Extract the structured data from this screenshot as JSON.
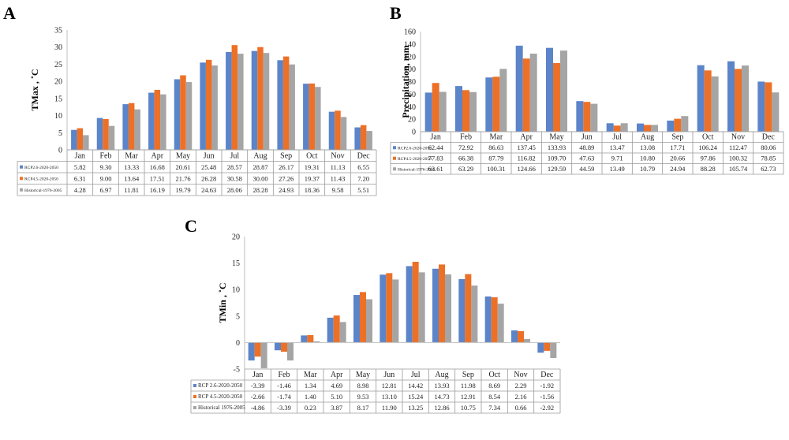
{
  "chart_data": [
    {
      "panel": "A",
      "type": "bar",
      "ylabel": "TMax , ˚C",
      "ylim": [
        0,
        35
      ],
      "yticks": [
        0,
        5,
        10,
        15,
        20,
        25,
        30,
        35
      ],
      "categories": [
        "Jan",
        "Feb",
        "Mar",
        "Apr",
        "May",
        "Jun",
        "Jul",
        "Aug",
        "Sep",
        "Oct",
        "Nov",
        "Dec"
      ],
      "series": [
        {
          "name": "RCP2.6-2020-2050",
          "color": "#5B84C9",
          "values": [
            5.82,
            9.3,
            13.33,
            16.68,
            20.61,
            25.48,
            28.57,
            28.87,
            26.17,
            19.31,
            11.13,
            6.55
          ],
          "labels": [
            "5.82",
            "9.30",
            "13.33",
            "16.68",
            "20.61",
            "25.48",
            "28.57",
            "28.87",
            "26.17",
            "19.31",
            "11.13",
            "6.55"
          ]
        },
        {
          "name": "RCP4.5-2020-2050",
          "color": "#ED7027",
          "values": [
            6.31,
            9.0,
            13.64,
            17.51,
            21.76,
            26.28,
            30.58,
            30.0,
            27.26,
            19.37,
            11.43,
            7.2
          ],
          "labels": [
            "6.31",
            "9.00",
            "13.64",
            "17.51",
            "21.76",
            "26.28",
            "30.58",
            "30.00",
            "27.26",
            "19.37",
            "11.43",
            "7.20"
          ]
        },
        {
          "name": "Historical-1976-2005",
          "color": "#A5A5A5",
          "values": [
            4.28,
            6.97,
            11.81,
            16.19,
            19.79,
            24.63,
            28.06,
            28.28,
            24.93,
            18.36,
            9.58,
            5.51
          ],
          "labels": [
            "4.28",
            "6.97",
            "11.81",
            "16.19",
            "19.79",
            "24.63",
            "28.06",
            "28.28",
            "24.93",
            "18.36",
            "9.58",
            "5.51"
          ]
        }
      ]
    },
    {
      "panel": "B",
      "type": "bar",
      "ylabel": "Precipitation, mm",
      "ylim": [
        0,
        160
      ],
      "yticks": [
        0,
        20,
        40,
        60,
        80,
        100,
        120,
        140,
        160
      ],
      "categories": [
        "Jan",
        "Feb",
        "Mar",
        "Apr",
        "May",
        "Jun",
        "Jul",
        "Aug",
        "Sep",
        "Oct",
        "Nov",
        "Dec"
      ],
      "series": [
        {
          "name": "RCP2.6-2020-2050",
          "color": "#5B84C9",
          "values": [
            62.44,
            72.92,
            86.63,
            137.45,
            133.93,
            48.89,
            13.47,
            13.08,
            17.71,
            106.24,
            112.47,
            80.06
          ],
          "labels": [
            "62.44",
            "72.92",
            "86.63",
            "137.45",
            "133.93",
            "48.89",
            "13.47",
            "13.08",
            "17.71",
            "106.24",
            "112.47",
            "80.06"
          ]
        },
        {
          "name": "RCP4.5-2020-2050",
          "color": "#ED7027",
          "values": [
            77.83,
            66.38,
            87.79,
            116.82,
            109.7,
            47.63,
            9.71,
            10.8,
            20.66,
            97.86,
            100.32,
            78.85
          ],
          "labels": [
            "77.83",
            "66.38",
            "87.79",
            "116.82",
            "109.70",
            "47.63",
            "9.71",
            "10.80",
            "20.66",
            "97.86",
            "100.32",
            "78.85"
          ]
        },
        {
          "name": "Historical-1976-2005",
          "color": "#A5A5A5",
          "values": [
            63.61,
            63.29,
            100.31,
            124.66,
            129.59,
            44.59,
            13.49,
            10.79,
            24.94,
            88.28,
            105.74,
            62.73
          ],
          "labels": [
            "63.61",
            "63.29",
            "100.31",
            "124.66",
            "129.59",
            "44.59",
            "13.49",
            "10.79",
            "24.94",
            "88.28",
            "105.74",
            "62.73"
          ]
        }
      ]
    },
    {
      "panel": "C",
      "type": "bar",
      "ylabel": "TMin , ˚C",
      "ylim": [
        -5,
        20
      ],
      "yticks": [
        -5,
        0,
        5,
        10,
        15,
        20
      ],
      "categories": [
        "Jan",
        "Feb",
        "Mar",
        "Apr",
        "May",
        "Jun",
        "Jul",
        "Aug",
        "Sep",
        "Oct",
        "Nov",
        "Dec"
      ],
      "series": [
        {
          "name": "RCP 2.6-2020-2050",
          "color": "#5B84C9",
          "values": [
            -3.39,
            -1.46,
            1.34,
            4.69,
            8.98,
            12.81,
            14.42,
            13.93,
            11.98,
            8.69,
            2.29,
            -1.92
          ],
          "labels": [
            "-3.39",
            "-1.46",
            "1.34",
            "4.69",
            "8.98",
            "12.81",
            "14.42",
            "13.93",
            "11.98",
            "8.69",
            "2.29",
            "-1.92"
          ]
        },
        {
          "name": "RCP 4.5-2020-2050",
          "color": "#ED7027",
          "values": [
            -2.66,
            -1.74,
            1.4,
            5.1,
            9.53,
            13.1,
            15.24,
            14.73,
            12.91,
            8.54,
            2.16,
            -1.56
          ],
          "labels": [
            "-2.66",
            "-1.74",
            "1.40",
            "5.10",
            "9.53",
            "13.10",
            "15.24",
            "14.73",
            "12.91",
            "8.54",
            "2.16",
            "-1.56"
          ]
        },
        {
          "name": "Historical 1976-2005",
          "color": "#A5A5A5",
          "values": [
            -4.86,
            -3.39,
            0.23,
            3.87,
            8.17,
            11.9,
            13.25,
            12.86,
            10.75,
            7.34,
            0.66,
            -2.92
          ],
          "labels": [
            "-4.86",
            "-3.39",
            "0.23",
            "3.87",
            "8.17",
            "11.90",
            "13.25",
            "12.86",
            "10.75",
            "7.34",
            "0.66",
            "-2.92"
          ]
        }
      ]
    }
  ]
}
